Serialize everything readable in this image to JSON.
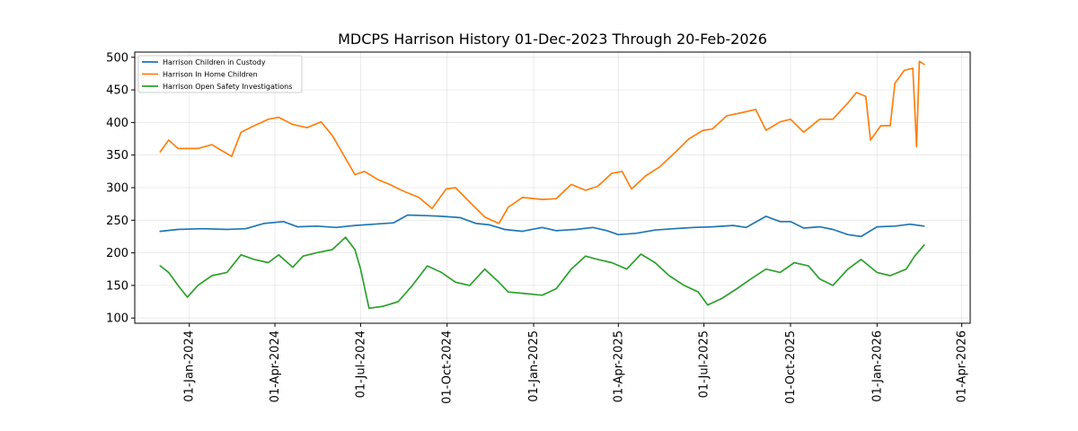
{
  "chart_data": {
    "type": "line",
    "title": "MDCPS Harrison History 01-Dec-2023 Through 20-Feb-2026",
    "xlabel": "",
    "ylabel": "",
    "ylim": [
      92,
      508
    ],
    "xlim": [
      "2023-11-04",
      "2026-04-10"
    ],
    "y_ticks": [
      100,
      150,
      200,
      250,
      300,
      350,
      400,
      450,
      500
    ],
    "x_ticks": [
      "2024-01-01",
      "2024-04-01",
      "2024-07-01",
      "2024-10-01",
      "2025-01-01",
      "2025-04-01",
      "2025-07-01",
      "2025-10-01",
      "2026-01-01",
      "2026-04-01"
    ],
    "x_tick_labels": [
      "01-Jan-2024",
      "01-Apr-2024",
      "01-Jul-2024",
      "01-Oct-2024",
      "01-Jan-2025",
      "01-Apr-2025",
      "01-Jul-2025",
      "01-Oct-2025",
      "01-Jan-2026",
      "01-Apr-2026"
    ],
    "grid": true,
    "legend_position": "top-left",
    "series": [
      {
        "name": "Harrison Children in Custody",
        "color": "#1f77b4",
        "points": [
          [
            "2023-12-01",
            233
          ],
          [
            "2023-12-20",
            236
          ],
          [
            "2024-01-15",
            237
          ],
          [
            "2024-02-10",
            236
          ],
          [
            "2024-03-01",
            237
          ],
          [
            "2024-03-20",
            245
          ],
          [
            "2024-04-10",
            248
          ],
          [
            "2024-04-25",
            240
          ],
          [
            "2024-05-15",
            241
          ],
          [
            "2024-06-05",
            239
          ],
          [
            "2024-06-25",
            242
          ],
          [
            "2024-07-15",
            244
          ],
          [
            "2024-08-05",
            246
          ],
          [
            "2024-08-20",
            258
          ],
          [
            "2024-09-10",
            257
          ],
          [
            "2024-09-25",
            256
          ],
          [
            "2024-10-15",
            254
          ],
          [
            "2024-11-01",
            245
          ],
          [
            "2024-11-15",
            243
          ],
          [
            "2024-12-01",
            236
          ],
          [
            "2024-12-20",
            233
          ],
          [
            "2025-01-10",
            239
          ],
          [
            "2025-01-25",
            234
          ],
          [
            "2025-02-15",
            236
          ],
          [
            "2025-03-05",
            239
          ],
          [
            "2025-03-20",
            234
          ],
          [
            "2025-04-01",
            228
          ],
          [
            "2025-04-20",
            230
          ],
          [
            "2025-05-10",
            235
          ],
          [
            "2025-05-30",
            237
          ],
          [
            "2025-06-20",
            239
          ],
          [
            "2025-07-10",
            240
          ],
          [
            "2025-08-01",
            242
          ],
          [
            "2025-08-15",
            239
          ],
          [
            "2025-09-05",
            256
          ],
          [
            "2025-09-20",
            248
          ],
          [
            "2025-10-01",
            248
          ],
          [
            "2025-10-15",
            238
          ],
          [
            "2025-11-01",
            240
          ],
          [
            "2025-11-15",
            236
          ],
          [
            "2025-12-01",
            228
          ],
          [
            "2025-12-15",
            225
          ],
          [
            "2026-01-01",
            240
          ],
          [
            "2026-01-20",
            241
          ],
          [
            "2026-02-05",
            244
          ],
          [
            "2026-02-20",
            241
          ]
        ]
      },
      {
        "name": "Harrison In Home Children",
        "color": "#ff7f0e",
        "points": [
          [
            "2023-12-01",
            355
          ],
          [
            "2023-12-10",
            373
          ],
          [
            "2023-12-20",
            360
          ],
          [
            "2024-01-10",
            360
          ],
          [
            "2024-01-25",
            366
          ],
          [
            "2024-02-15",
            348
          ],
          [
            "2024-02-25",
            385
          ],
          [
            "2024-03-10",
            395
          ],
          [
            "2024-03-25",
            405
          ],
          [
            "2024-04-05",
            408
          ],
          [
            "2024-04-20",
            397
          ],
          [
            "2024-05-05",
            392
          ],
          [
            "2024-05-20",
            401
          ],
          [
            "2024-06-01",
            380
          ],
          [
            "2024-06-15",
            345
          ],
          [
            "2024-06-25",
            320
          ],
          [
            "2024-07-05",
            325
          ],
          [
            "2024-07-20",
            312
          ],
          [
            "2024-08-01",
            305
          ],
          [
            "2024-08-15",
            295
          ],
          [
            "2024-09-01",
            285
          ],
          [
            "2024-09-15",
            268
          ],
          [
            "2024-09-30",
            298
          ],
          [
            "2024-10-10",
            300
          ],
          [
            "2024-10-25",
            278
          ],
          [
            "2024-11-10",
            255
          ],
          [
            "2024-11-25",
            245
          ],
          [
            "2024-12-05",
            270
          ],
          [
            "2024-12-20",
            285
          ],
          [
            "2025-01-10",
            282
          ],
          [
            "2025-01-25",
            283
          ],
          [
            "2025-02-10",
            305
          ],
          [
            "2025-02-25",
            296
          ],
          [
            "2025-03-10",
            302
          ],
          [
            "2025-03-25",
            322
          ],
          [
            "2025-04-05",
            325
          ],
          [
            "2025-04-15",
            298
          ],
          [
            "2025-04-30",
            318
          ],
          [
            "2025-05-15",
            332
          ],
          [
            "2025-06-01",
            355
          ],
          [
            "2025-06-15",
            375
          ],
          [
            "2025-06-30",
            388
          ],
          [
            "2025-07-10",
            390
          ],
          [
            "2025-07-25",
            410
          ],
          [
            "2025-08-10",
            415
          ],
          [
            "2025-08-25",
            420
          ],
          [
            "2025-09-05",
            388
          ],
          [
            "2025-09-20",
            401
          ],
          [
            "2025-10-01",
            405
          ],
          [
            "2025-10-15",
            385
          ],
          [
            "2025-11-01",
            405
          ],
          [
            "2025-11-15",
            405
          ],
          [
            "2025-12-01",
            430
          ],
          [
            "2025-12-10",
            446
          ],
          [
            "2025-12-20",
            440
          ],
          [
            "2025-12-25",
            373
          ],
          [
            "2026-01-05",
            395
          ],
          [
            "2026-01-15",
            395
          ],
          [
            "2026-01-20",
            460
          ],
          [
            "2026-01-30",
            480
          ],
          [
            "2026-02-08",
            483
          ],
          [
            "2026-02-12",
            363
          ],
          [
            "2026-02-15",
            494
          ],
          [
            "2026-02-20",
            489
          ]
        ]
      },
      {
        "name": "Harrison Open Safety Investigations",
        "color": "#2ca02c",
        "points": [
          [
            "2023-12-01",
            180
          ],
          [
            "2023-12-10",
            170
          ],
          [
            "2023-12-20",
            150
          ],
          [
            "2023-12-30",
            132
          ],
          [
            "2024-01-10",
            150
          ],
          [
            "2024-01-25",
            165
          ],
          [
            "2024-02-10",
            170
          ],
          [
            "2024-02-25",
            197
          ],
          [
            "2024-03-10",
            190
          ],
          [
            "2024-03-25",
            185
          ],
          [
            "2024-04-05",
            197
          ],
          [
            "2024-04-20",
            178
          ],
          [
            "2024-05-01",
            195
          ],
          [
            "2024-05-15",
            200
          ],
          [
            "2024-06-01",
            205
          ],
          [
            "2024-06-15",
            224
          ],
          [
            "2024-06-25",
            205
          ],
          [
            "2024-07-01",
            175
          ],
          [
            "2024-07-10",
            115
          ],
          [
            "2024-07-25",
            118
          ],
          [
            "2024-08-10",
            125
          ],
          [
            "2024-08-25",
            150
          ],
          [
            "2024-09-10",
            180
          ],
          [
            "2024-09-25",
            170
          ],
          [
            "2024-10-10",
            155
          ],
          [
            "2024-10-25",
            150
          ],
          [
            "2024-11-10",
            175
          ],
          [
            "2024-11-25",
            155
          ],
          [
            "2024-12-05",
            140
          ],
          [
            "2024-12-20",
            138
          ],
          [
            "2025-01-10",
            135
          ],
          [
            "2025-01-25",
            145
          ],
          [
            "2025-02-10",
            175
          ],
          [
            "2025-02-25",
            195
          ],
          [
            "2025-03-10",
            190
          ],
          [
            "2025-03-25",
            185
          ],
          [
            "2025-04-10",
            175
          ],
          [
            "2025-04-25",
            198
          ],
          [
            "2025-05-10",
            185
          ],
          [
            "2025-05-25",
            165
          ],
          [
            "2025-06-10",
            150
          ],
          [
            "2025-06-25",
            140
          ],
          [
            "2025-07-05",
            120
          ],
          [
            "2025-07-20",
            130
          ],
          [
            "2025-08-05",
            145
          ],
          [
            "2025-08-20",
            160
          ],
          [
            "2025-09-05",
            175
          ],
          [
            "2025-09-20",
            170
          ],
          [
            "2025-10-05",
            185
          ],
          [
            "2025-10-20",
            180
          ],
          [
            "2025-11-01",
            160
          ],
          [
            "2025-11-15",
            150
          ],
          [
            "2025-12-01",
            175
          ],
          [
            "2025-12-15",
            190
          ],
          [
            "2026-01-01",
            170
          ],
          [
            "2026-01-15",
            165
          ],
          [
            "2026-02-01",
            175
          ],
          [
            "2026-02-10",
            195
          ],
          [
            "2026-02-20",
            212
          ]
        ]
      }
    ]
  }
}
